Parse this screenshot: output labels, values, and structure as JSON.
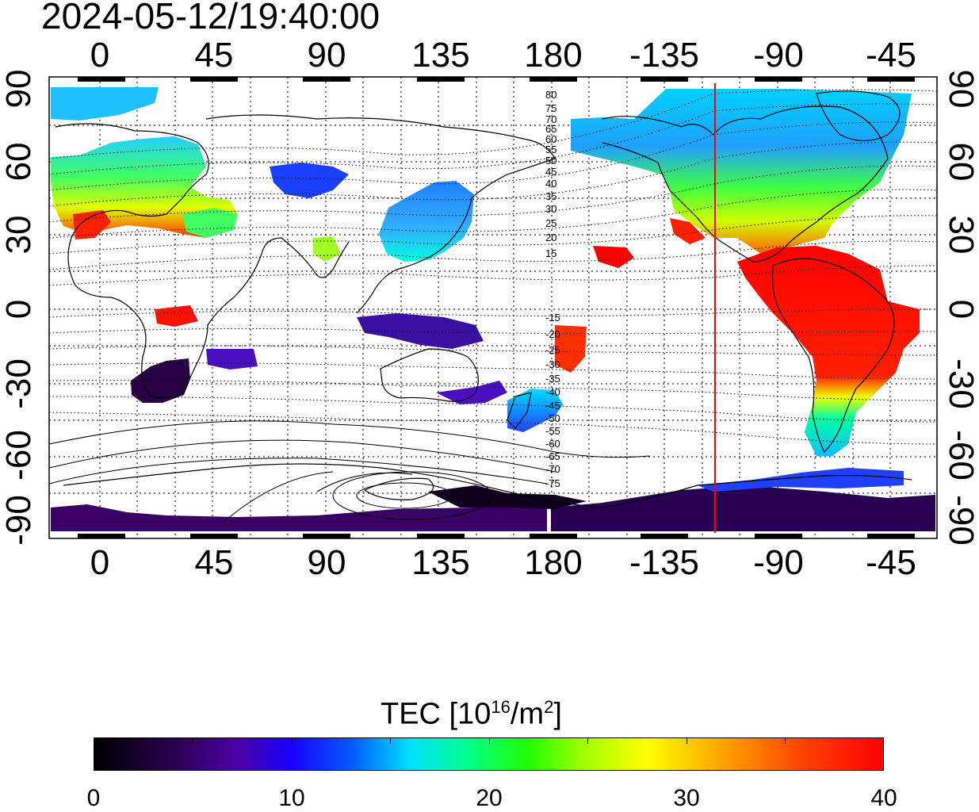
{
  "title": "2024-05-12/19:40:00",
  "lon_ticks": [
    "0",
    "45",
    "90",
    "135",
    "180",
    "-135",
    "-90",
    "-45"
  ],
  "lat_ticks": [
    "90",
    "60",
    "30",
    "0",
    "-30",
    "-60",
    "-90"
  ],
  "contour_labels": [
    "80",
    "75",
    "70",
    "65",
    "60",
    "55",
    "50",
    "45",
    "40",
    "35",
    "30",
    "25",
    "20",
    "15",
    "-15",
    "-20",
    "-25",
    "-30",
    "-35",
    "-40",
    "-45",
    "-50",
    "-55",
    "-60",
    "-65",
    "-70",
    "-75"
  ],
  "colorbar": {
    "title_prefix": "TEC  [10",
    "title_exp1": "16",
    "title_mid": "/m",
    "title_exp2": "2",
    "title_suffix": "]",
    "tick_labels": [
      "0",
      "10",
      "20",
      "30",
      "40"
    ],
    "min": 0,
    "max": 40
  },
  "colors": {
    "terminator_line": "#ff0000",
    "low": "#000000",
    "high": "#ff0000"
  },
  "terminator_longitude": -115
}
